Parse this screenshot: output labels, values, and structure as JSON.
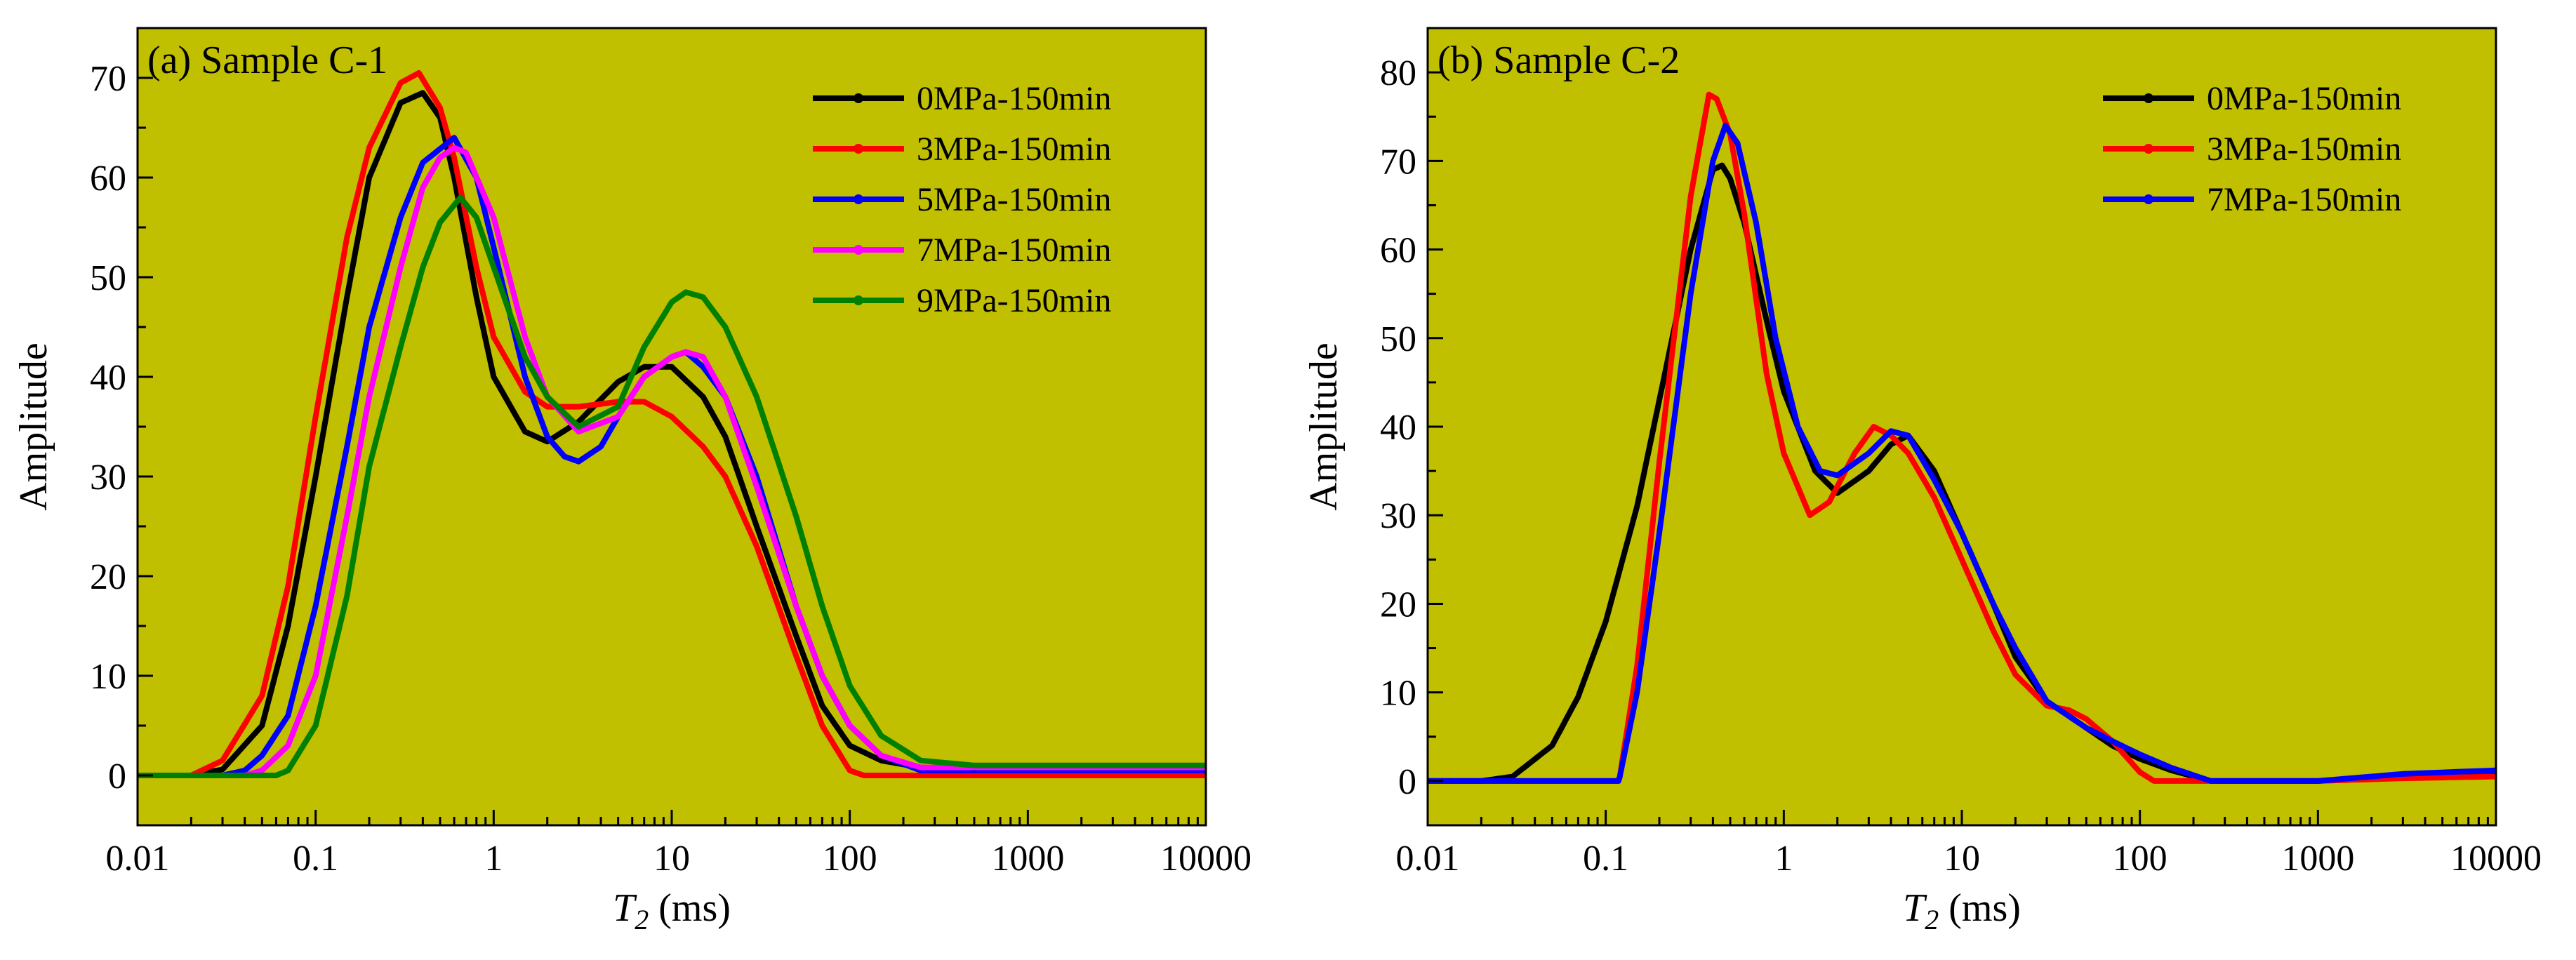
{
  "chart_data": [
    {
      "id": "panel-a",
      "type": "line",
      "title": "(a) Sample C-1",
      "xlabel": {
        "symbol": "T",
        "subscript": "2",
        "unit": " (ms)"
      },
      "ylabel": "Amplitude",
      "xscale": "log",
      "xlim": [
        0.01,
        10000
      ],
      "ylim": [
        -5,
        75
      ],
      "xticks": [
        0.01,
        0.1,
        1,
        10,
        100,
        1000,
        10000
      ],
      "xtick_labels": [
        "0.01",
        "0.1",
        "1",
        "10",
        "100",
        "1000",
        "10000"
      ],
      "yticks": [
        0,
        10,
        20,
        30,
        40,
        50,
        60,
        70
      ],
      "ytick_labels": [
        "0",
        "10",
        "20",
        "30",
        "40",
        "50",
        "60",
        "70"
      ],
      "background": "#c0bf00",
      "legend_position": "top-right",
      "series": [
        {
          "name": "0MPa-150min",
          "color": "#000000",
          "points": [
            [
              0.01,
              0
            ],
            [
              0.02,
              0
            ],
            [
              0.03,
              0.6
            ],
            [
              0.05,
              5
            ],
            [
              0.07,
              15
            ],
            [
              0.1,
              30
            ],
            [
              0.15,
              48
            ],
            [
              0.2,
              60
            ],
            [
              0.3,
              67.5
            ],
            [
              0.4,
              68.5
            ],
            [
              0.5,
              66
            ],
            [
              0.6,
              60
            ],
            [
              0.8,
              48
            ],
            [
              1,
              40
            ],
            [
              1.5,
              34.5
            ],
            [
              2,
              33.5
            ],
            [
              3,
              35.5
            ],
            [
              5,
              39.5
            ],
            [
              7,
              41
            ],
            [
              10,
              41
            ],
            [
              15,
              38
            ],
            [
              20,
              34
            ],
            [
              30,
              25
            ],
            [
              50,
              14
            ],
            [
              70,
              7
            ],
            [
              100,
              3
            ],
            [
              150,
              1.5
            ],
            [
              250,
              0.8
            ],
            [
              500,
              0.5
            ],
            [
              1000,
              0.5
            ],
            [
              10000,
              0.5
            ]
          ]
        },
        {
          "name": "3MPa-150min",
          "color": "#ff0000",
          "points": [
            [
              0.01,
              0
            ],
            [
              0.02,
              0
            ],
            [
              0.03,
              1.5
            ],
            [
              0.05,
              8
            ],
            [
              0.07,
              19
            ],
            [
              0.1,
              36
            ],
            [
              0.15,
              54
            ],
            [
              0.2,
              63
            ],
            [
              0.3,
              69.5
            ],
            [
              0.38,
              70.5
            ],
            [
              0.5,
              67
            ],
            [
              0.6,
              62
            ],
            [
              0.8,
              51
            ],
            [
              1,
              44
            ],
            [
              1.5,
              38.5
            ],
            [
              2,
              37
            ],
            [
              3,
              37
            ],
            [
              5,
              37.5
            ],
            [
              7,
              37.5
            ],
            [
              10,
              36
            ],
            [
              15,
              33
            ],
            [
              20,
              30
            ],
            [
              30,
              23
            ],
            [
              50,
              12
            ],
            [
              70,
              5
            ],
            [
              100,
              0.5
            ],
            [
              120,
              0
            ],
            [
              10000,
              0
            ]
          ]
        },
        {
          "name": "5MPa-150min",
          "color": "#0000ff",
          "points": [
            [
              0.01,
              0
            ],
            [
              0.03,
              0
            ],
            [
              0.04,
              0.5
            ],
            [
              0.05,
              2
            ],
            [
              0.07,
              6
            ],
            [
              0.1,
              17
            ],
            [
              0.15,
              33
            ],
            [
              0.2,
              45
            ],
            [
              0.3,
              56
            ],
            [
              0.4,
              61.5
            ],
            [
              0.6,
              64
            ],
            [
              0.8,
              60
            ],
            [
              1,
              53
            ],
            [
              1.5,
              40
            ],
            [
              2,
              34
            ],
            [
              2.5,
              32
            ],
            [
              3,
              31.5
            ],
            [
              4,
              33
            ],
            [
              5,
              36
            ],
            [
              7,
              40
            ],
            [
              10,
              42
            ],
            [
              12,
              42.5
            ],
            [
              15,
              41
            ],
            [
              20,
              38
            ],
            [
              30,
              30
            ],
            [
              50,
              17
            ],
            [
              70,
              10
            ],
            [
              100,
              5
            ],
            [
              150,
              2
            ],
            [
              250,
              0.5
            ],
            [
              500,
              0.5
            ],
            [
              10000,
              0.5
            ]
          ]
        },
        {
          "name": "7MPa-150min",
          "color": "#ff00ff",
          "points": [
            [
              0.01,
              0
            ],
            [
              0.04,
              0
            ],
            [
              0.05,
              0.5
            ],
            [
              0.07,
              3
            ],
            [
              0.1,
              10
            ],
            [
              0.15,
              26
            ],
            [
              0.2,
              38
            ],
            [
              0.3,
              51
            ],
            [
              0.4,
              59
            ],
            [
              0.5,
              62
            ],
            [
              0.6,
              63
            ],
            [
              0.7,
              62.5
            ],
            [
              1,
              56
            ],
            [
              1.5,
              44
            ],
            [
              2,
              38
            ],
            [
              3,
              34.5
            ],
            [
              5,
              36
            ],
            [
              7,
              40
            ],
            [
              10,
              42
            ],
            [
              12,
              42.5
            ],
            [
              15,
              42
            ],
            [
              20,
              38
            ],
            [
              30,
              29
            ],
            [
              50,
              17
            ],
            [
              70,
              10
            ],
            [
              100,
              5
            ],
            [
              150,
              2
            ],
            [
              250,
              0.8
            ],
            [
              500,
              0.8
            ],
            [
              10000,
              0.8
            ]
          ]
        },
        {
          "name": "9MPa-150min",
          "color": "#008000",
          "points": [
            [
              0.01,
              0
            ],
            [
              0.06,
              0
            ],
            [
              0.07,
              0.5
            ],
            [
              0.1,
              5
            ],
            [
              0.15,
              18
            ],
            [
              0.2,
              31
            ],
            [
              0.3,
              43
            ],
            [
              0.4,
              51
            ],
            [
              0.5,
              55.5
            ],
            [
              0.65,
              58
            ],
            [
              0.8,
              56
            ],
            [
              1,
              51
            ],
            [
              1.5,
              42
            ],
            [
              2,
              38
            ],
            [
              3,
              35
            ],
            [
              5,
              37
            ],
            [
              7,
              43
            ],
            [
              10,
              47.5
            ],
            [
              12,
              48.5
            ],
            [
              15,
              48
            ],
            [
              20,
              45
            ],
            [
              30,
              38
            ],
            [
              50,
              26
            ],
            [
              70,
              17
            ],
            [
              100,
              9
            ],
            [
              150,
              4
            ],
            [
              250,
              1.5
            ],
            [
              500,
              1
            ],
            [
              1000,
              1
            ],
            [
              10000,
              1
            ]
          ]
        }
      ]
    },
    {
      "id": "panel-b",
      "type": "line",
      "title": "(b) Sample C-2",
      "xlabel": {
        "symbol": "T",
        "subscript": "2",
        "unit": " (ms)"
      },
      "ylabel": "Amplitude",
      "xscale": "log",
      "xlim": [
        0.01,
        10000
      ],
      "ylim": [
        -5,
        85
      ],
      "xticks": [
        0.01,
        0.1,
        1,
        10,
        100,
        1000,
        10000
      ],
      "xtick_labels": [
        "0.01",
        "0.1",
        "1",
        "10",
        "100",
        "1000",
        "10000"
      ],
      "yticks": [
        0,
        10,
        20,
        30,
        40,
        50,
        60,
        70,
        80
      ],
      "ytick_labels": [
        "0",
        "10",
        "20",
        "30",
        "40",
        "50",
        "60",
        "70",
        "80"
      ],
      "background": "#c0bf00",
      "legend_position": "top-right",
      "series": [
        {
          "name": "0MPa-150min",
          "color": "#000000",
          "points": [
            [
              0.01,
              0
            ],
            [
              0.02,
              0
            ],
            [
              0.03,
              0.5
            ],
            [
              0.05,
              4
            ],
            [
              0.07,
              9.5
            ],
            [
              0.1,
              18
            ],
            [
              0.15,
              31
            ],
            [
              0.2,
              43
            ],
            [
              0.3,
              60
            ],
            [
              0.4,
              69
            ],
            [
              0.45,
              69.5
            ],
            [
              0.5,
              68
            ],
            [
              0.6,
              63
            ],
            [
              0.8,
              52
            ],
            [
              1,
              44
            ],
            [
              1.5,
              35
            ],
            [
              2,
              32.5
            ],
            [
              3,
              35
            ],
            [
              4,
              38
            ],
            [
              5,
              39
            ],
            [
              7,
              35
            ],
            [
              10,
              28
            ],
            [
              15,
              20
            ],
            [
              20,
              14
            ],
            [
              30,
              9
            ],
            [
              50,
              6
            ],
            [
              70,
              4
            ],
            [
              100,
              2.5
            ],
            [
              150,
              1.2
            ],
            [
              250,
              0
            ],
            [
              1000,
              0
            ],
            [
              3000,
              0.5
            ],
            [
              10000,
              0.8
            ]
          ]
        },
        {
          "name": "3MPa-150min",
          "color": "#ff0000",
          "points": [
            [
              0.01,
              0
            ],
            [
              0.118,
              0
            ],
            [
              0.12,
              0.5
            ],
            [
              0.15,
              13
            ],
            [
              0.2,
              36
            ],
            [
              0.3,
              66
            ],
            [
              0.38,
              77.5
            ],
            [
              0.42,
              77
            ],
            [
              0.5,
              73
            ],
            [
              0.6,
              64
            ],
            [
              0.8,
              46
            ],
            [
              1,
              37
            ],
            [
              1.4,
              30
            ],
            [
              1.8,
              31.5
            ],
            [
              2.5,
              37
            ],
            [
              3.2,
              40
            ],
            [
              4,
              39
            ],
            [
              5,
              37
            ],
            [
              7,
              32
            ],
            [
              10,
              25
            ],
            [
              15,
              17
            ],
            [
              20,
              12
            ],
            [
              30,
              8.5
            ],
            [
              40,
              8
            ],
            [
              50,
              7
            ],
            [
              70,
              4.5
            ],
            [
              100,
              1
            ],
            [
              120,
              0
            ],
            [
              1000,
              0
            ],
            [
              3000,
              0.3
            ],
            [
              10000,
              0.5
            ]
          ]
        },
        {
          "name": "7MPa-150min",
          "color": "#0000ff",
          "points": [
            [
              0.01,
              0
            ],
            [
              0.118,
              0
            ],
            [
              0.12,
              0.5
            ],
            [
              0.15,
              10
            ],
            [
              0.2,
              28
            ],
            [
              0.3,
              55
            ],
            [
              0.4,
              70
            ],
            [
              0.47,
              74
            ],
            [
              0.55,
              72
            ],
            [
              0.7,
              63
            ],
            [
              0.9,
              50
            ],
            [
              1.2,
              40
            ],
            [
              1.6,
              35
            ],
            [
              2,
              34.5
            ],
            [
              3,
              37
            ],
            [
              4,
              39.5
            ],
            [
              5,
              39
            ],
            [
              7,
              34
            ],
            [
              10,
              28
            ],
            [
              15,
              20
            ],
            [
              20,
              15
            ],
            [
              30,
              9
            ],
            [
              50,
              6
            ],
            [
              70,
              4.5
            ],
            [
              100,
              3
            ],
            [
              150,
              1.5
            ],
            [
              250,
              0
            ],
            [
              1000,
              0
            ],
            [
              3000,
              0.8
            ],
            [
              10000,
              1.2
            ]
          ]
        }
      ]
    }
  ]
}
